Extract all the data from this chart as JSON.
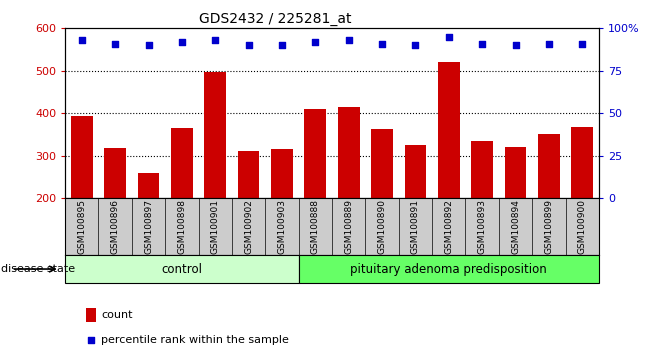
{
  "title": "GDS2432 / 225281_at",
  "samples": [
    "GSM100895",
    "GSM100896",
    "GSM100897",
    "GSM100898",
    "GSM100901",
    "GSM100902",
    "GSM100903",
    "GSM100888",
    "GSM100889",
    "GSM100890",
    "GSM100891",
    "GSM100892",
    "GSM100893",
    "GSM100894",
    "GSM100899",
    "GSM100900"
  ],
  "bar_values": [
    393,
    318,
    260,
    365,
    497,
    312,
    317,
    410,
    415,
    363,
    325,
    520,
    335,
    320,
    352,
    367
  ],
  "dot_values": [
    93,
    91,
    90,
    92,
    93,
    90,
    90,
    92,
    93,
    91,
    90,
    95,
    91,
    90,
    91,
    91
  ],
  "bar_color": "#cc0000",
  "dot_color": "#0000cc",
  "control_count": 7,
  "pituitary_count": 9,
  "ylim_left": [
    200,
    600
  ],
  "ylim_right": [
    0,
    100
  ],
  "yticks_left": [
    200,
    300,
    400,
    500,
    600
  ],
  "yticks_right": [
    0,
    25,
    50,
    75,
    100
  ],
  "grid_values": [
    300,
    400,
    500
  ],
  "control_label": "control",
  "pituitary_label": "pituitary adenoma predisposition",
  "disease_state_label": "disease state",
  "legend_count": "count",
  "legend_pct": "percentile rank within the sample",
  "control_color": "#ccffcc",
  "pituitary_color": "#66ff66",
  "bar_bottom": 200,
  "right_tick_labels": [
    "0",
    "25",
    "50",
    "75",
    "100%"
  ]
}
